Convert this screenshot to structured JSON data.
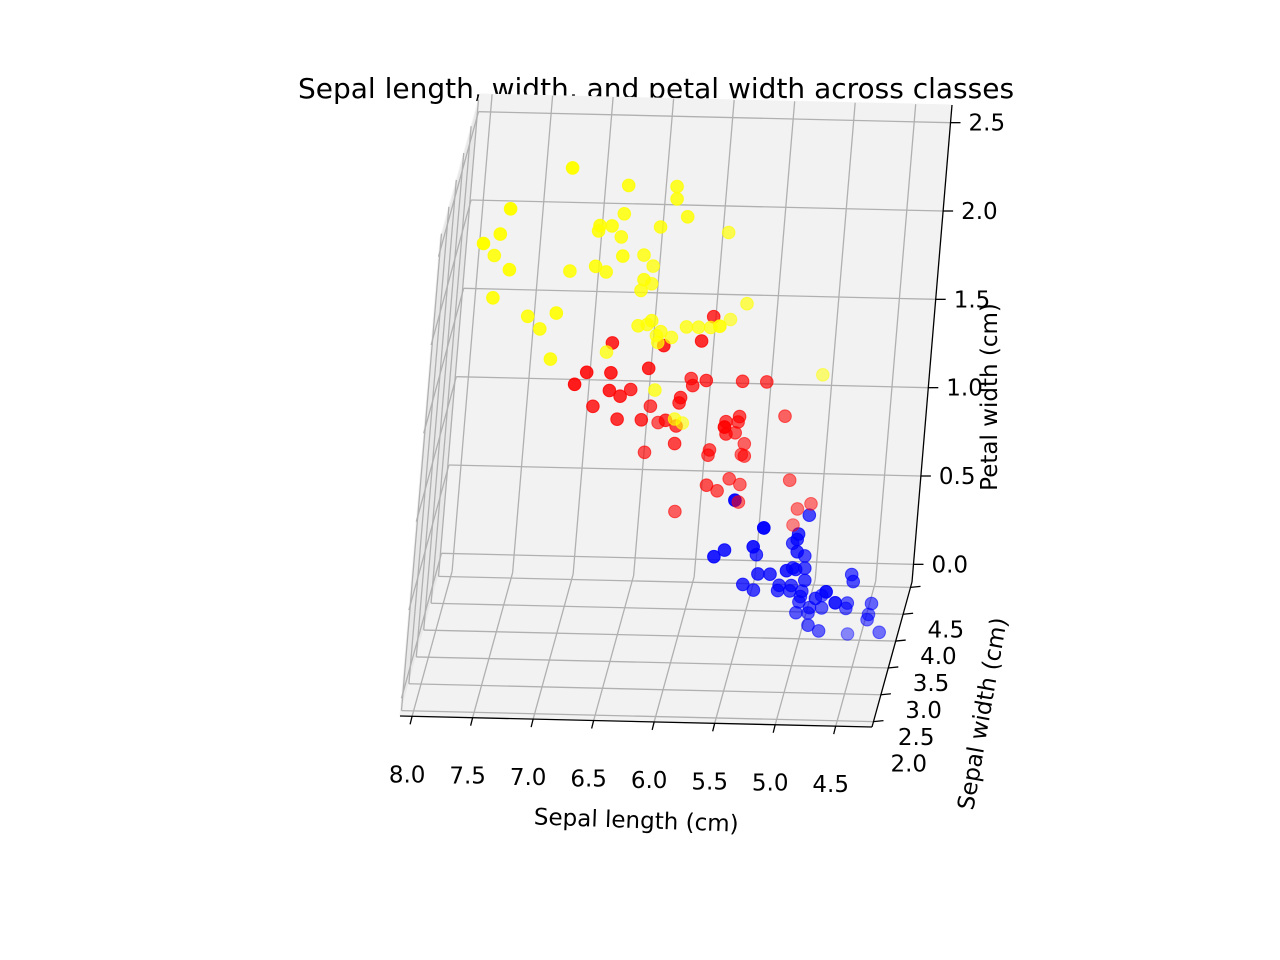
{
  "chart_data": {
    "type": "scatter",
    "projection": "3d",
    "title": "Sepal length, width, and petal width across classes",
    "xlabel": "Sepal length (cm)",
    "ylabel": "Sepal width (cm)",
    "zlabel": "Petal width (cm)",
    "xlim": [
      4.2,
      8.1
    ],
    "ylim": [
      1.9,
      4.6
    ],
    "zlim": [
      -0.1,
      2.6
    ],
    "xticks": [
      8.0,
      7.5,
      7.0,
      6.5,
      6.0,
      5.5,
      5.0,
      4.5
    ],
    "xtick_labels": [
      "8.0",
      "7.5",
      "7.0",
      "6.5",
      "6.0",
      "5.5",
      "5.0",
      "4.5"
    ],
    "yticks": [
      2.0,
      2.5,
      3.0,
      3.5,
      4.0,
      4.5
    ],
    "ytick_labels": [
      "2.0",
      "2.5",
      "3.0",
      "3.5",
      "4.0",
      "4.5"
    ],
    "zticks": [
      0.0,
      0.5,
      1.0,
      1.5,
      2.0,
      2.5
    ],
    "ztick_labels": [
      "0.0",
      "0.5",
      "1.0",
      "1.5",
      "2.0",
      "2.5"
    ],
    "grid": true,
    "series": [
      {
        "color": "#0000ff",
        "points": [
          [
            5.1,
            3.5,
            0.2
          ],
          [
            4.9,
            3.0,
            0.2
          ],
          [
            4.7,
            3.2,
            0.2
          ],
          [
            4.6,
            3.1,
            0.2
          ],
          [
            5.0,
            3.6,
            0.2
          ],
          [
            5.4,
            3.9,
            0.4
          ],
          [
            4.6,
            3.4,
            0.3
          ],
          [
            5.0,
            3.4,
            0.2
          ],
          [
            4.4,
            2.9,
            0.2
          ],
          [
            4.9,
            3.1,
            0.1
          ],
          [
            5.4,
            3.7,
            0.2
          ],
          [
            4.8,
            3.4,
            0.2
          ],
          [
            4.8,
            3.0,
            0.1
          ],
          [
            4.3,
            3.0,
            0.1
          ],
          [
            5.8,
            4.0,
            0.2
          ],
          [
            5.7,
            4.4,
            0.4
          ],
          [
            5.4,
            3.9,
            0.4
          ],
          [
            5.1,
            3.5,
            0.3
          ],
          [
            5.7,
            3.8,
            0.3
          ],
          [
            5.1,
            3.8,
            0.3
          ],
          [
            5.4,
            3.4,
            0.2
          ],
          [
            5.1,
            3.7,
            0.4
          ],
          [
            4.6,
            3.6,
            0.2
          ],
          [
            5.1,
            3.3,
            0.5
          ],
          [
            4.8,
            3.4,
            0.2
          ],
          [
            5.0,
            3.0,
            0.2
          ],
          [
            5.0,
            3.4,
            0.4
          ],
          [
            5.2,
            3.5,
            0.2
          ],
          [
            5.2,
            3.4,
            0.2
          ],
          [
            4.7,
            3.2,
            0.2
          ],
          [
            4.8,
            3.1,
            0.2
          ],
          [
            5.4,
            3.4,
            0.4
          ],
          [
            5.2,
            4.1,
            0.1
          ],
          [
            5.5,
            4.2,
            0.2
          ],
          [
            4.9,
            3.1,
            0.2
          ],
          [
            5.0,
            3.2,
            0.2
          ],
          [
            5.5,
            3.5,
            0.2
          ],
          [
            4.9,
            3.6,
            0.1
          ],
          [
            4.4,
            3.0,
            0.2
          ],
          [
            5.1,
            3.4,
            0.2
          ],
          [
            5.0,
            3.5,
            0.3
          ],
          [
            4.5,
            2.3,
            0.3
          ],
          [
            4.4,
            3.2,
            0.2
          ],
          [
            5.0,
            3.5,
            0.6
          ],
          [
            5.1,
            3.8,
            0.4
          ],
          [
            4.8,
            3.0,
            0.3
          ],
          [
            5.1,
            3.8,
            0.2
          ],
          [
            4.6,
            3.2,
            0.2
          ],
          [
            5.3,
            3.7,
            0.2
          ],
          [
            5.0,
            3.3,
            0.2
          ]
        ]
      },
      {
        "color": "#ff0000",
        "points": [
          [
            7.0,
            3.2,
            1.4
          ],
          [
            6.4,
            3.2,
            1.5
          ],
          [
            6.9,
            3.1,
            1.5
          ],
          [
            5.5,
            2.3,
            1.3
          ],
          [
            6.5,
            2.8,
            1.5
          ],
          [
            5.7,
            2.8,
            1.3
          ],
          [
            6.3,
            3.3,
            1.6
          ],
          [
            4.9,
            2.4,
            1.0
          ],
          [
            6.6,
            2.9,
            1.3
          ],
          [
            5.2,
            2.7,
            1.4
          ],
          [
            5.0,
            2.0,
            1.0
          ],
          [
            5.9,
            3.0,
            1.5
          ],
          [
            6.0,
            2.2,
            1.0
          ],
          [
            6.1,
            2.9,
            1.4
          ],
          [
            5.6,
            2.9,
            1.3
          ],
          [
            6.7,
            3.1,
            1.4
          ],
          [
            5.6,
            3.0,
            1.5
          ],
          [
            5.8,
            2.7,
            1.0
          ],
          [
            6.2,
            2.2,
            1.5
          ],
          [
            5.6,
            2.5,
            1.1
          ],
          [
            5.9,
            3.2,
            1.8
          ],
          [
            6.1,
            2.8,
            1.3
          ],
          [
            6.3,
            2.5,
            1.5
          ],
          [
            6.1,
            2.8,
            1.2
          ],
          [
            6.4,
            2.9,
            1.3
          ],
          [
            6.6,
            3.0,
            1.4
          ],
          [
            6.8,
            2.8,
            1.4
          ],
          [
            6.7,
            3.0,
            1.7
          ],
          [
            6.0,
            2.9,
            1.5
          ],
          [
            5.7,
            2.6,
            1.0
          ],
          [
            5.5,
            2.4,
            1.1
          ],
          [
            5.5,
            2.4,
            1.0
          ],
          [
            5.8,
            2.7,
            1.2
          ],
          [
            6.0,
            2.7,
            1.6
          ],
          [
            5.4,
            3.0,
            1.5
          ],
          [
            6.0,
            3.4,
            1.6
          ],
          [
            6.7,
            3.1,
            1.5
          ],
          [
            6.3,
            2.3,
            1.3
          ],
          [
            5.6,
            3.0,
            1.3
          ],
          [
            5.5,
            2.5,
            1.3
          ],
          [
            5.5,
            2.6,
            1.2
          ],
          [
            6.1,
            3.0,
            1.4
          ],
          [
            5.8,
            2.6,
            1.2
          ],
          [
            5.0,
            2.3,
            1.0
          ],
          [
            5.6,
            2.7,
            1.3
          ],
          [
            5.7,
            3.0,
            1.2
          ],
          [
            5.7,
            2.9,
            1.3
          ],
          [
            6.2,
            2.9,
            1.3
          ],
          [
            5.1,
            2.5,
            1.1
          ],
          [
            5.7,
            2.8,
            1.3
          ]
        ]
      },
      {
        "color": "#ffff00",
        "points": [
          [
            6.3,
            3.3,
            2.5
          ],
          [
            5.8,
            2.7,
            1.9
          ],
          [
            7.1,
            3.0,
            2.1
          ],
          [
            6.3,
            2.9,
            1.8
          ],
          [
            6.5,
            3.0,
            2.2
          ],
          [
            7.6,
            3.0,
            2.1
          ],
          [
            4.9,
            2.5,
            1.7
          ],
          [
            7.3,
            2.9,
            1.8
          ],
          [
            6.7,
            2.5,
            1.8
          ],
          [
            7.2,
            3.6,
            2.5
          ],
          [
            6.5,
            3.2,
            2.0
          ],
          [
            6.4,
            2.7,
            1.9
          ],
          [
            6.8,
            3.0,
            2.1
          ],
          [
            5.7,
            2.5,
            2.0
          ],
          [
            5.8,
            2.8,
            2.4
          ],
          [
            6.4,
            3.2,
            2.3
          ],
          [
            6.5,
            3.0,
            1.8
          ],
          [
            7.7,
            3.8,
            2.2
          ],
          [
            7.7,
            2.6,
            2.3
          ],
          [
            6.0,
            2.2,
            1.5
          ],
          [
            6.9,
            3.2,
            2.3
          ],
          [
            5.6,
            2.8,
            2.0
          ],
          [
            7.7,
            2.8,
            2.0
          ],
          [
            6.3,
            2.7,
            1.8
          ],
          [
            6.7,
            3.3,
            2.1
          ],
          [
            7.2,
            3.2,
            1.8
          ],
          [
            6.2,
            2.8,
            1.8
          ],
          [
            6.1,
            3.0,
            1.8
          ],
          [
            6.4,
            2.8,
            2.1
          ],
          [
            7.2,
            3.0,
            1.6
          ],
          [
            7.4,
            2.8,
            1.9
          ],
          [
            7.9,
            3.8,
            2.0
          ],
          [
            6.4,
            2.8,
            2.2
          ],
          [
            6.3,
            2.8,
            1.5
          ],
          [
            6.1,
            2.6,
            1.4
          ],
          [
            7.7,
            3.0,
            2.3
          ],
          [
            6.3,
            3.4,
            2.4
          ],
          [
            6.4,
            3.1,
            1.8
          ],
          [
            6.0,
            3.0,
            1.8
          ],
          [
            6.9,
            3.1,
            2.1
          ],
          [
            6.7,
            3.1,
            2.4
          ],
          [
            6.9,
            3.1,
            2.3
          ],
          [
            5.8,
            2.7,
            1.9
          ],
          [
            6.8,
            3.2,
            2.3
          ],
          [
            6.7,
            3.3,
            2.5
          ],
          [
            6.7,
            3.0,
            2.3
          ],
          [
            6.3,
            2.5,
            1.9
          ],
          [
            6.5,
            3.0,
            2.0
          ],
          [
            6.2,
            3.4,
            2.3
          ],
          [
            5.9,
            3.0,
            1.8
          ]
        ]
      }
    ]
  }
}
